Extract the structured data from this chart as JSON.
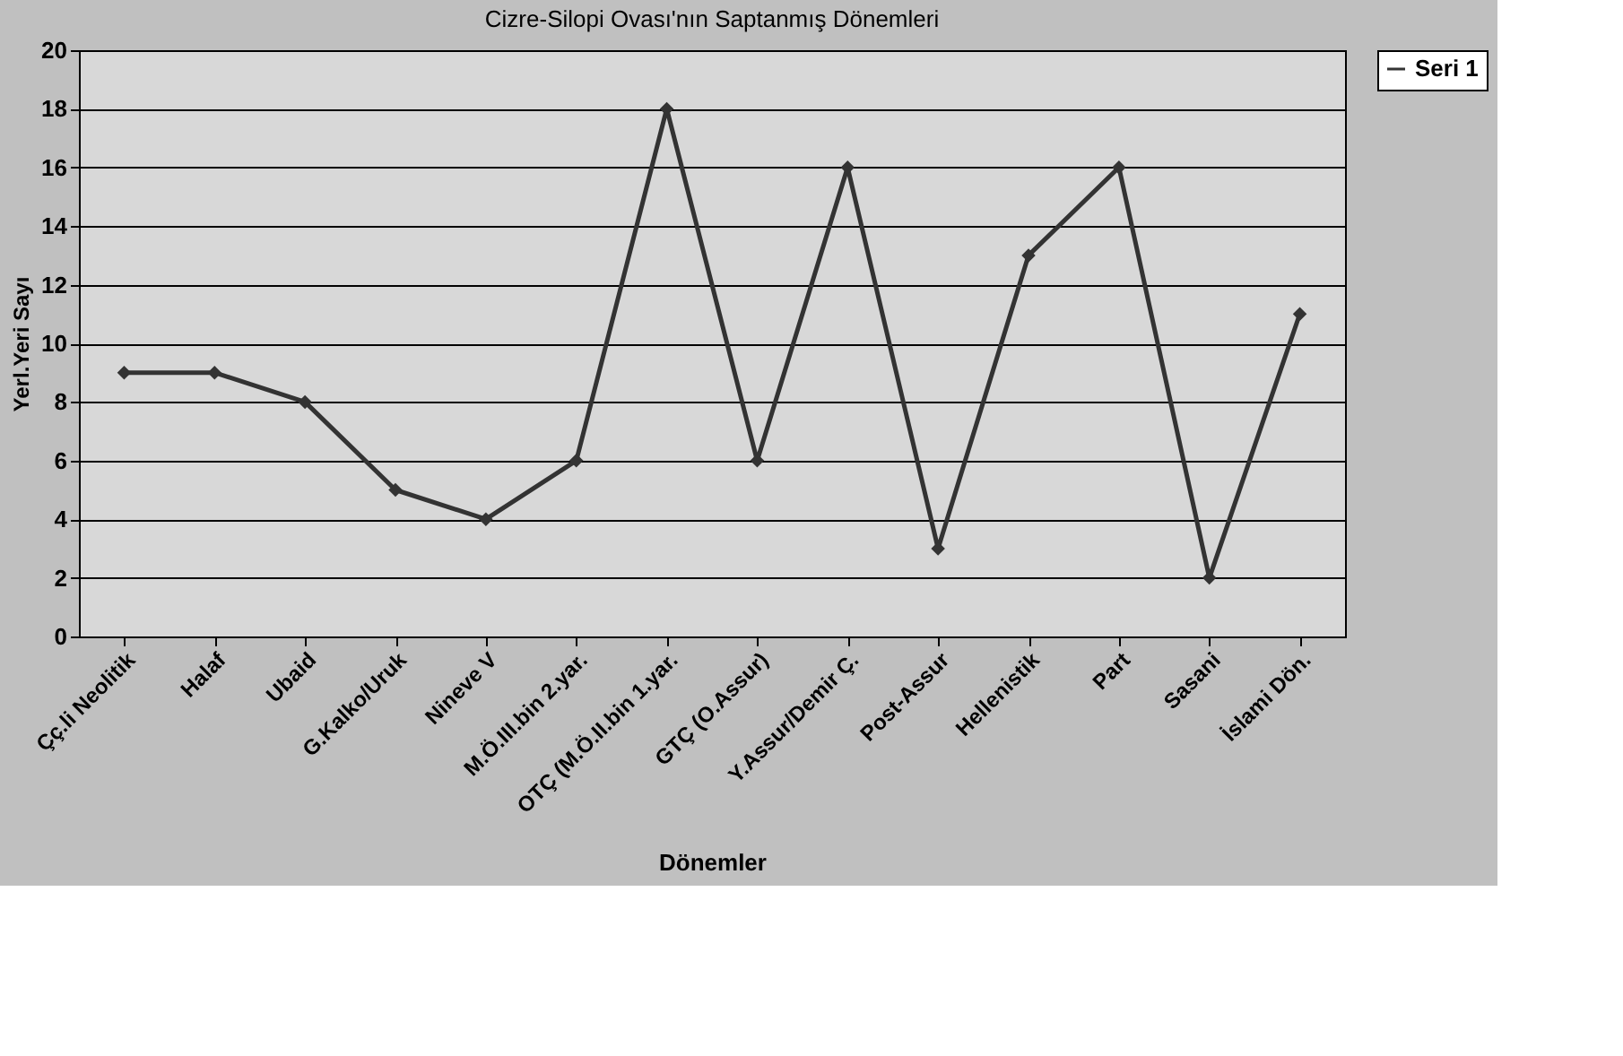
{
  "chart_data": {
    "type": "line",
    "title": "Cizre-Silopi Ovası'nın  Saptanmış Dönemleri",
    "xlabel": "Dönemler",
    "ylabel": "Yerl.Yeri Sayı",
    "categories": [
      "Çç.li Neolitik",
      "Halaf",
      "Ubaid",
      "G.Kalko/Uruk",
      "Nineve V",
      "M.Ö.III.bin 2.yar.",
      "OTÇ (M.Ö.II.bin 1.yar.",
      "GTÇ (O.Assur)",
      "Y.Assur/Demir Ç.",
      "Post-Assur",
      "Hellenistik",
      "Part",
      "Sasani",
      "İslami Dön."
    ],
    "series": [
      {
        "name": "Seri 1",
        "color": "#333333",
        "values": [
          9,
          9,
          8,
          5,
          4,
          6,
          18,
          6,
          16,
          3,
          13,
          16,
          2,
          11
        ]
      }
    ],
    "ylim": [
      0,
      20
    ],
    "yticks": [
      0,
      2,
      4,
      6,
      8,
      10,
      12,
      14,
      16,
      18,
      20
    ],
    "grid": "y",
    "legend": "right",
    "marker": "diamond",
    "line_style": "solid"
  }
}
